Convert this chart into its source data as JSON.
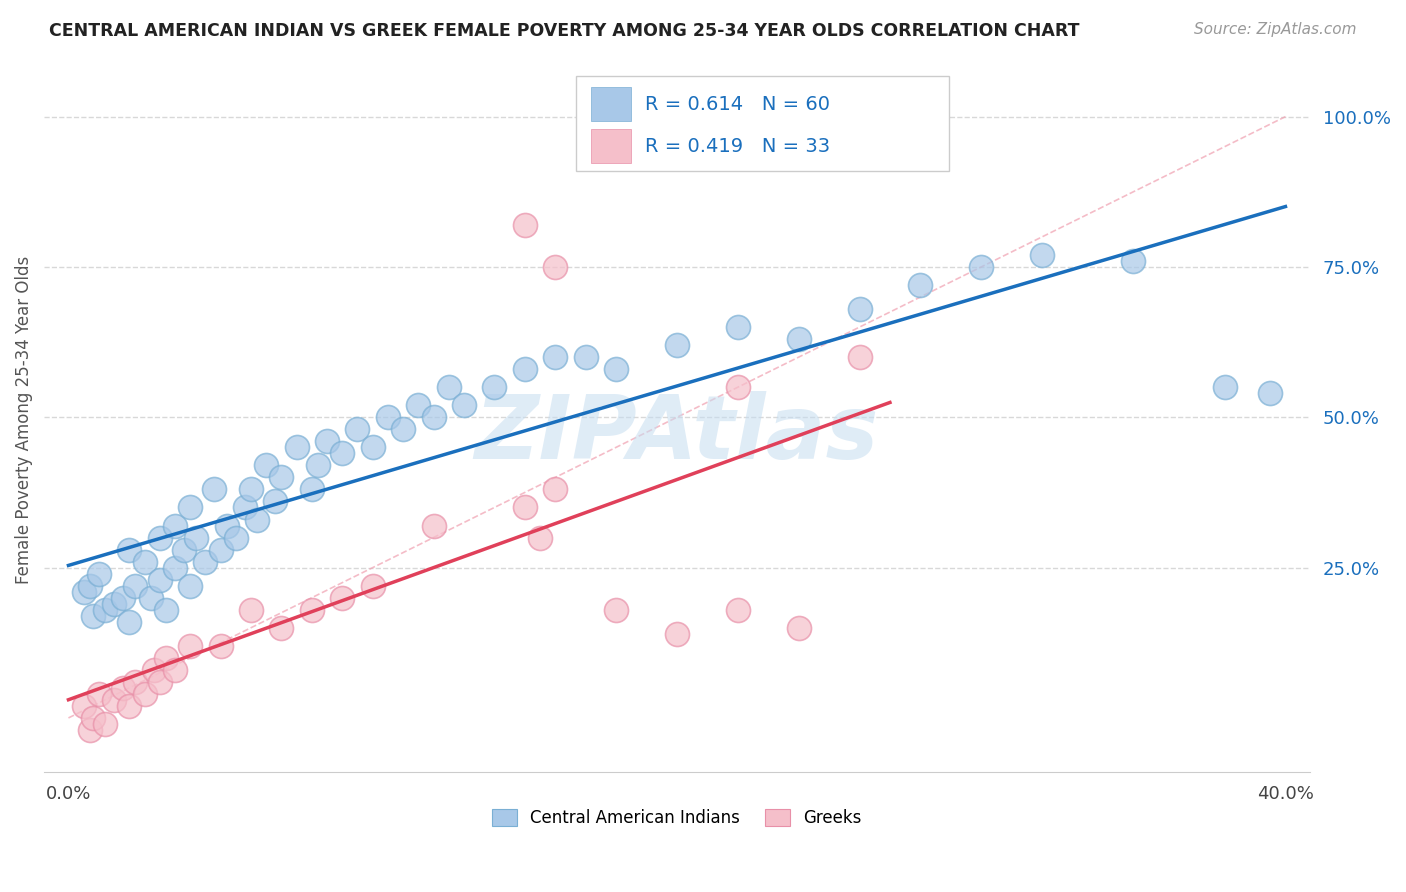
{
  "title": "CENTRAL AMERICAN INDIAN VS GREEK FEMALE POVERTY AMONG 25-34 YEAR OLDS CORRELATION CHART",
  "source": "Source: ZipAtlas.com",
  "ylabel": "Female Poverty Among 25-34 Year Olds",
  "blue_color": "#a8c8e8",
  "blue_edge_color": "#7aafd4",
  "pink_color": "#f5bfca",
  "pink_edge_color": "#e890a8",
  "blue_line_color": "#1a6fbd",
  "pink_line_color": "#e0405a",
  "ref_line_color": "#f0a0b0",
  "grid_color": "#d8d8d8",
  "legend_text_color": "#1a6fbd",
  "legend_label_color": "#000000",
  "watermark_color": "#c5ddf0",
  "r_blue": "0.614",
  "n_blue": "60",
  "r_pink": "0.419",
  "n_pink": "33",
  "blue_x": [
    0.005,
    0.007,
    0.008,
    0.01,
    0.012,
    0.015,
    0.018,
    0.02,
    0.02,
    0.022,
    0.025,
    0.027,
    0.03,
    0.03,
    0.032,
    0.035,
    0.035,
    0.038,
    0.04,
    0.04,
    0.042,
    0.045,
    0.048,
    0.05,
    0.052,
    0.055,
    0.058,
    0.06,
    0.062,
    0.065,
    0.068,
    0.07,
    0.075,
    0.08,
    0.082,
    0.085,
    0.09,
    0.095,
    0.1,
    0.105,
    0.11,
    0.115,
    0.12,
    0.125,
    0.13,
    0.14,
    0.15,
    0.16,
    0.17,
    0.18,
    0.2,
    0.22,
    0.24,
    0.26,
    0.28,
    0.3,
    0.32,
    0.35,
    0.38,
    0.395
  ],
  "blue_y": [
    0.21,
    0.22,
    0.17,
    0.24,
    0.18,
    0.19,
    0.2,
    0.16,
    0.28,
    0.22,
    0.26,
    0.2,
    0.23,
    0.3,
    0.18,
    0.25,
    0.32,
    0.28,
    0.22,
    0.35,
    0.3,
    0.26,
    0.38,
    0.28,
    0.32,
    0.3,
    0.35,
    0.38,
    0.33,
    0.42,
    0.36,
    0.4,
    0.45,
    0.38,
    0.42,
    0.46,
    0.44,
    0.48,
    0.45,
    0.5,
    0.48,
    0.52,
    0.5,
    0.55,
    0.52,
    0.55,
    0.58,
    0.6,
    0.6,
    0.58,
    0.62,
    0.65,
    0.63,
    0.68,
    0.72,
    0.75,
    0.77,
    0.76,
    0.55,
    0.54
  ],
  "pink_x": [
    0.005,
    0.007,
    0.008,
    0.01,
    0.012,
    0.015,
    0.018,
    0.02,
    0.022,
    0.025,
    0.028,
    0.03,
    0.032,
    0.035,
    0.04,
    0.05,
    0.06,
    0.07,
    0.08,
    0.09,
    0.1,
    0.12,
    0.15,
    0.155,
    0.16,
    0.18,
    0.2,
    0.22,
    0.24,
    0.15,
    0.16,
    0.22,
    0.26
  ],
  "pink_y": [
    0.02,
    -0.02,
    0.0,
    0.04,
    -0.01,
    0.03,
    0.05,
    0.02,
    0.06,
    0.04,
    0.08,
    0.06,
    0.1,
    0.08,
    0.12,
    0.12,
    0.18,
    0.15,
    0.18,
    0.2,
    0.22,
    0.32,
    0.35,
    0.3,
    0.38,
    0.18,
    0.14,
    0.18,
    0.15,
    0.82,
    0.75,
    0.55,
    0.6
  ]
}
